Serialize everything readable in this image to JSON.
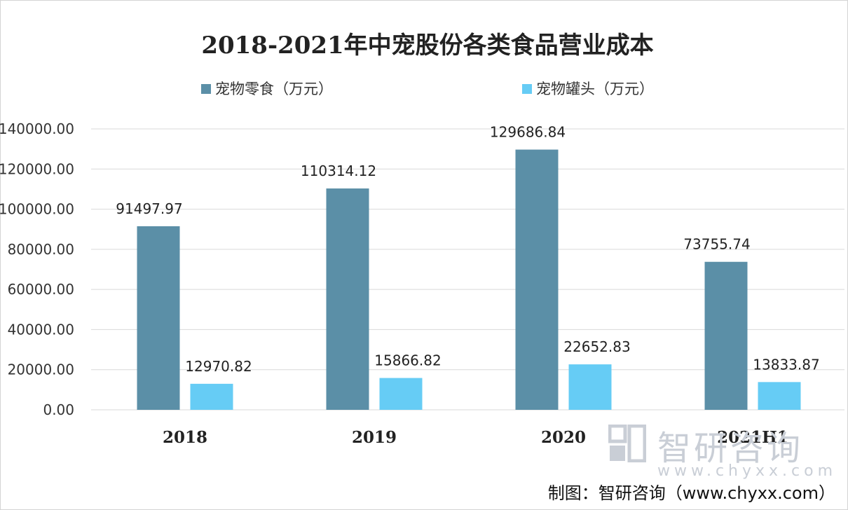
{
  "chart_data": {
    "type": "bar",
    "title": "2018-2021年中宠股份各类食品营业成本",
    "categories": [
      "2018",
      "2019",
      "2020",
      "2021H1"
    ],
    "series": [
      {
        "name": "宠物零食（万元）",
        "color": "#5b8fa7",
        "values": [
          91497.97,
          110314.12,
          129686.84,
          73755.74
        ],
        "labels": [
          "91497.97",
          "110314.12",
          "129686.84",
          "73755.74"
        ]
      },
      {
        "name": "宠物罐头（万元）",
        "color": "#66ccf5",
        "values": [
          12970.82,
          15866.82,
          22652.83,
          13833.87
        ],
        "labels": [
          "12970.82",
          "15866.82",
          "22652.83",
          "13833.87"
        ]
      }
    ],
    "yticks": [
      "0.00",
      "20000.00",
      "40000.00",
      "60000.00",
      "80000.00",
      "100000.00",
      "120000.00",
      "140000.00"
    ],
    "ylim": [
      0,
      140000
    ],
    "grid": true,
    "legend": "top"
  },
  "watermark": {
    "name": "智研咨询",
    "url": "www.chyxx.com"
  },
  "credit": "制图：智研咨询（www.chyxx.com）"
}
